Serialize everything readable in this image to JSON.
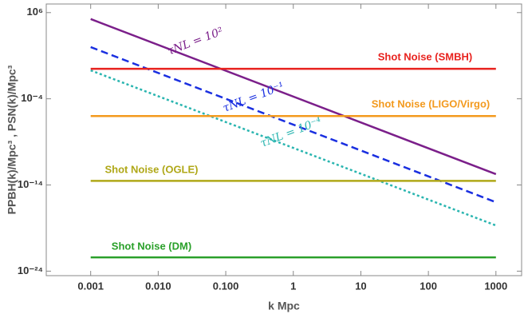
{
  "chart_data": {
    "type": "line",
    "xlabel": "k Mpc",
    "ylabel": "PPBH(k)/Mpc³ , PSN(k)/Mpc³",
    "xscale": "log",
    "yscale": "log",
    "xlim": [
      0.00022,
      2400
    ],
    "ylim": [
      3e-25,
      10000000.0
    ],
    "xticks": [
      0.001,
      {
        "value": 0.01,
        "label": "0.010"
      },
      {
        "value": 0.1,
        "label": "0.100"
      },
      1,
      10,
      100,
      1000
    ],
    "yticks": [
      {
        "value": 1000000.0,
        "label": "10⁶"
      },
      {
        "value": 0.0001,
        "label": "10⁻⁴"
      },
      {
        "value": 1e-14,
        "label": "10⁻¹⁴"
      },
      {
        "value": 1e-24,
        "label": "10⁻²⁴"
      }
    ],
    "grid": false,
    "x": [
      0.001,
      1000
    ],
    "series": [
      {
        "name": "τNL = 10²",
        "color": "#7b1f8a",
        "dash": "solid",
        "values": [
          180000,
          1.8e-13
        ]
      },
      {
        "name": "τNL = 10⁻¹",
        "color": "#1a2fe0",
        "dash": "dashed",
        "values": [
          100,
          1e-16
        ]
      },
      {
        "name": "τNL = 10⁻⁴",
        "color": "#2ab5b0",
        "dash": "dotted",
        "values": [
          0.2,
          2e-19
        ]
      },
      {
        "name": "Shot Noise (SMBH)",
        "color": "#e8231f",
        "dash": "solid",
        "values": [
          0.3,
          0.3
        ]
      },
      {
        "name": "Shot Noise (LIGO/Virgo)",
        "color": "#f39a1e",
        "dash": "solid",
        "values": [
          1e-06,
          1e-06
        ]
      },
      {
        "name": "Shot Noise (OGLE)",
        "color": "#b0a818",
        "dash": "solid",
        "values": [
          3e-14,
          3e-14
        ]
      },
      {
        "name": "Shot Noise (DM)",
        "color": "#2aa02a",
        "dash": "solid",
        "values": [
          4e-23,
          4e-23
        ]
      }
    ]
  }
}
